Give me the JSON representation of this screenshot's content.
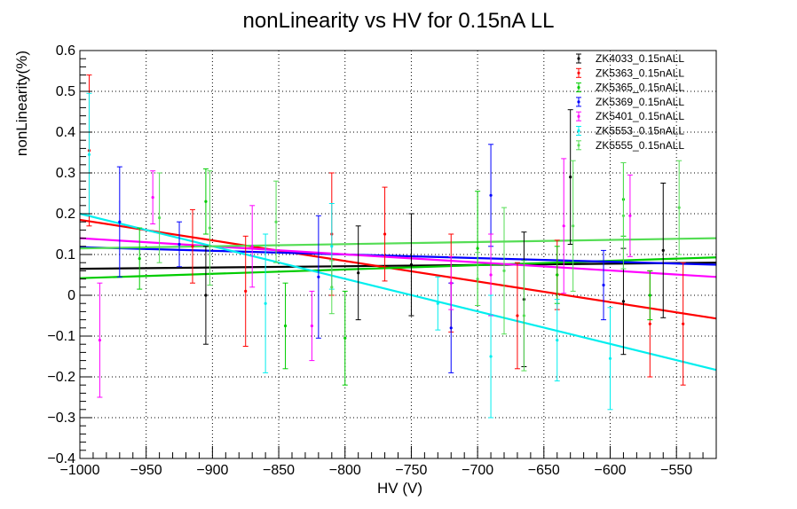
{
  "chart_data": {
    "type": "scatter",
    "title": "nonLinearity vs HV for 0.15nA LL",
    "xlabel": "HV (V)",
    "ylabel": "nonLinearity(%)",
    "xlim": [
      -1000,
      -520
    ],
    "ylim": [
      -0.4,
      0.6
    ],
    "xticks": [
      -1000,
      -950,
      -900,
      -850,
      -800,
      -750,
      -700,
      -650,
      -600,
      -550
    ],
    "xtick_labels": [
      "−1000",
      "−950",
      "−900",
      "−850",
      "−800",
      "−750",
      "−700",
      "−650",
      "−600",
      "−550"
    ],
    "yticks": [
      -0.4,
      -0.3,
      -0.2,
      -0.1,
      0,
      0.1,
      0.2,
      0.3,
      0.4,
      0.5,
      0.6
    ],
    "ytick_labels": [
      "−0.4",
      "−0.3",
      "−0.2",
      "−0.1",
      "0",
      "0.1",
      "0.2",
      "0.3",
      "0.4",
      "0.5",
      "0.6"
    ],
    "grid": true,
    "legend_position": "top-right",
    "series": [
      {
        "name": "ZK4033_0.15nALL",
        "color": "#000000",
        "points": [
          {
            "x": -905,
            "y": 0.0,
            "err": 0.12
          },
          {
            "x": -790,
            "y": 0.055,
            "err": 0.115
          },
          {
            "x": -750,
            "y": 0.075,
            "err": 0.125
          },
          {
            "x": -665,
            "y": -0.01,
            "err": 0.165
          },
          {
            "x": -630,
            "y": 0.29,
            "err": 0.165
          },
          {
            "x": -590,
            "y": -0.015,
            "err": 0.13
          },
          {
            "x": -560,
            "y": 0.11,
            "err": 0.165
          }
        ],
        "fit": [
          [
            -1000,
            0.065
          ],
          [
            -520,
            0.08
          ]
        ]
      },
      {
        "name": "ZK5363_0.15nALL",
        "color": "#ff0000",
        "points": [
          {
            "x": -993,
            "y": 0.355,
            "err": 0.185
          },
          {
            "x": -915,
            "y": 0.12,
            "err": 0.09
          },
          {
            "x": -875,
            "y": 0.01,
            "err": 0.135
          },
          {
            "x": -810,
            "y": 0.15,
            "err": 0.15
          },
          {
            "x": -770,
            "y": 0.15,
            "err": 0.115
          },
          {
            "x": -720,
            "y": 0.03,
            "err": 0.12
          },
          {
            "x": -670,
            "y": -0.05,
            "err": 0.13
          },
          {
            "x": -640,
            "y": 0.05,
            "err": 0.085
          },
          {
            "x": -570,
            "y": -0.07,
            "err": 0.13
          },
          {
            "x": -545,
            "y": -0.07,
            "err": 0.15
          }
        ],
        "fit": [
          [
            -1000,
            0.185
          ],
          [
            -520,
            -0.057
          ]
        ]
      },
      {
        "name": "ZK5365_0.15nALL",
        "color": "#00cc00",
        "points": [
          {
            "x": -955,
            "y": 0.09,
            "err": 0.075
          },
          {
            "x": -905,
            "y": 0.23,
            "err": 0.08
          },
          {
            "x": -845,
            "y": -0.075,
            "err": 0.105
          },
          {
            "x": -800,
            "y": -0.105,
            "err": 0.115
          },
          {
            "x": -700,
            "y": 0.115,
            "err": 0.14
          },
          {
            "x": -640,
            "y": 0.05,
            "err": 0.07
          },
          {
            "x": -590,
            "y": 0.235,
            "err": 0.09
          },
          {
            "x": -570,
            "y": 0.0,
            "err": 0.06
          }
        ],
        "fit": [
          [
            -1000,
            0.042
          ],
          [
            -520,
            0.093
          ]
        ]
      },
      {
        "name": "ZK5369_0.15nALL",
        "color": "#0000ff",
        "points": [
          {
            "x": -970,
            "y": 0.18,
            "err": 0.135
          },
          {
            "x": -925,
            "y": 0.125,
            "err": 0.055
          },
          {
            "x": -820,
            "y": 0.045,
            "err": 0.15
          },
          {
            "x": -720,
            "y": -0.08,
            "err": 0.11
          },
          {
            "x": -690,
            "y": 0.245,
            "err": 0.125
          },
          {
            "x": -605,
            "y": 0.025,
            "err": 0.085
          }
        ],
        "fit": [
          [
            -1000,
            0.118
          ],
          [
            -520,
            0.075
          ]
        ]
      },
      {
        "name": "ZK5401_0.15nALL",
        "color": "#ff00ff",
        "points": [
          {
            "x": -985,
            "y": -0.11,
            "err": 0.14
          },
          {
            "x": -945,
            "y": 0.24,
            "err": 0.065
          },
          {
            "x": -870,
            "y": 0.12,
            "err": 0.1
          },
          {
            "x": -825,
            "y": -0.075,
            "err": 0.085
          },
          {
            "x": -720,
            "y": 0.03,
            "err": 0.065
          },
          {
            "x": -690,
            "y": 0.05,
            "err": 0.1
          },
          {
            "x": -635,
            "y": 0.17,
            "err": 0.165
          },
          {
            "x": -585,
            "y": 0.195,
            "err": 0.1
          }
        ],
        "fit": [
          [
            -1000,
            0.14
          ],
          [
            -520,
            0.045
          ]
        ]
      },
      {
        "name": "ZK5553_0.15nALL",
        "color": "#00eeee",
        "points": [
          {
            "x": -993,
            "y": 0.345,
            "err": 0.15
          },
          {
            "x": -860,
            "y": -0.02,
            "err": 0.17
          },
          {
            "x": -810,
            "y": 0.12,
            "err": 0.105
          },
          {
            "x": -730,
            "y": -0.02,
            "err": 0.065
          },
          {
            "x": -690,
            "y": -0.15,
            "err": 0.15
          },
          {
            "x": -640,
            "y": -0.11,
            "err": 0.1
          },
          {
            "x": -600,
            "y": -0.155,
            "err": 0.125
          }
        ],
        "fit": [
          [
            -1000,
            0.2
          ],
          [
            -520,
            -0.183
          ]
        ]
      },
      {
        "name": "ZK5555_0.15nALL",
        "color": "#55dd55",
        "points": [
          {
            "x": -940,
            "y": 0.19,
            "err": 0.11
          },
          {
            "x": -902,
            "y": 0.165,
            "err": 0.14
          },
          {
            "x": -852,
            "y": 0.18,
            "err": 0.1
          },
          {
            "x": -810,
            "y": 0.02,
            "err": 0.065
          },
          {
            "x": -700,
            "y": 0.04,
            "err": 0.065
          },
          {
            "x": -680,
            "y": 0.06,
            "err": 0.155
          },
          {
            "x": -665,
            "y": -0.05,
            "err": 0.135
          },
          {
            "x": -628,
            "y": 0.17,
            "err": 0.16
          },
          {
            "x": -590,
            "y": 0.195,
            "err": 0.13
          },
          {
            "x": -548,
            "y": 0.215,
            "err": 0.115
          }
        ],
        "fit": [
          [
            -1000,
            0.115
          ],
          [
            -520,
            0.14
          ]
        ]
      }
    ]
  }
}
